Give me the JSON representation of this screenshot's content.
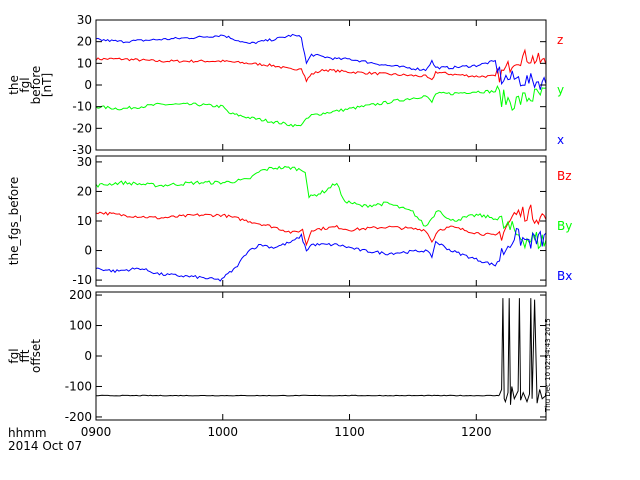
{
  "figure": {
    "footer_time_label": "hhmm",
    "footer_date_label": "2014 Oct 07",
    "side_stamp": "Thu Dec 10 02:54:43 2015"
  },
  "colors": {
    "x": "#0000ff",
    "y": "#00ff00",
    "z": "#ff0000",
    "black": "#000000"
  },
  "chart_data": [
    {
      "type": "line",
      "panel": "fgl",
      "ylabel_lines": [
        "the",
        "fgl",
        "before",
        "[nT]"
      ],
      "ylim": [
        -30,
        30
      ],
      "yticks": [
        -30,
        -20,
        -10,
        0,
        10,
        20,
        30
      ],
      "xlim": [
        900,
        1255
      ],
      "xticks": [
        900,
        1000,
        1100,
        1200
      ],
      "series": [
        {
          "name": "z",
          "color": "#ff0000",
          "noise": 0.6,
          "x": [
            900,
            920,
            950,
            980,
            1000,
            1020,
            1040,
            1055,
            1062,
            1066,
            1070,
            1080,
            1100,
            1130,
            1160,
            1165,
            1168,
            1180,
            1200,
            1215,
            1220,
            1225,
            1230,
            1240,
            1255
          ],
          "y": [
            12,
            12,
            11,
            11,
            11,
            10,
            9,
            7,
            8,
            2,
            5,
            7,
            6,
            5,
            4,
            2,
            6,
            5,
            4,
            4,
            5,
            8,
            12,
            13,
            10
          ]
        },
        {
          "name": "y",
          "color": "#00ff00",
          "noise": 0.7,
          "x": [
            900,
            920,
            950,
            980,
            1000,
            1005,
            1020,
            1040,
            1060,
            1066,
            1070,
            1090,
            1100,
            1130,
            1160,
            1165,
            1168,
            1180,
            1200,
            1215,
            1220,
            1230,
            1240,
            1255
          ],
          "y": [
            -10,
            -11,
            -9,
            -9,
            -10,
            -13,
            -15,
            -17,
            -19,
            -16,
            -14,
            -12,
            -11,
            -8,
            -5,
            -8,
            -4,
            -4,
            -3,
            -3,
            -6,
            -8,
            -6,
            -4
          ]
        },
        {
          "name": "x",
          "color": "#0000ff",
          "noise": 0.6,
          "x": [
            900,
            920,
            950,
            980,
            1000,
            1020,
            1040,
            1055,
            1062,
            1066,
            1070,
            1090,
            1100,
            1130,
            1160,
            1165,
            1168,
            1180,
            1200,
            1215,
            1220,
            1230,
            1240,
            1255
          ],
          "y": [
            21,
            20,
            21,
            22,
            23,
            19,
            21,
            23,
            22,
            10,
            14,
            12,
            12,
            9,
            7,
            11,
            8,
            8,
            9,
            11,
            3,
            3,
            2,
            1
          ]
        }
      ],
      "legend": [
        "z",
        "y",
        "x"
      ]
    },
    {
      "type": "line",
      "panel": "fgs",
      "ylabel_lines": [
        "the_fgs_before"
      ],
      "ylim": [
        -12,
        32
      ],
      "yticks": [
        -10,
        0,
        10,
        20,
        30
      ],
      "xlim": [
        900,
        1255
      ],
      "xticks": [
        900,
        1000,
        1100,
        1200
      ],
      "series": [
        {
          "name": "Bz",
          "color": "#ff0000",
          "noise": 0.5,
          "x": [
            900,
            920,
            950,
            980,
            1000,
            1020,
            1040,
            1055,
            1063,
            1066,
            1070,
            1090,
            1100,
            1130,
            1160,
            1165,
            1170,
            1180,
            1200,
            1215,
            1220,
            1230,
            1240,
            1255
          ],
          "y": [
            13,
            12,
            11,
            12,
            12,
            10,
            8,
            6,
            7,
            2,
            7,
            8,
            7,
            8,
            7,
            3,
            7,
            8,
            6,
            5,
            6,
            12,
            13,
            11
          ]
        },
        {
          "name": "By",
          "color": "#00ff00",
          "noise": 0.6,
          "x": [
            900,
            920,
            950,
            980,
            1000,
            1020,
            1030,
            1040,
            1055,
            1065,
            1068,
            1080,
            1090,
            1095,
            1110,
            1130,
            1150,
            1160,
            1170,
            1180,
            1200,
            1215,
            1220,
            1230,
            1240,
            1255
          ],
          "y": [
            22,
            23,
            22,
            23,
            23,
            24,
            27,
            28,
            28,
            27,
            18,
            20,
            23,
            17,
            15,
            16,
            13,
            8,
            14,
            10,
            12,
            11,
            9,
            6,
            4,
            3
          ]
        },
        {
          "name": "Bx",
          "color": "#0000ff",
          "noise": 0.5,
          "x": [
            900,
            915,
            935,
            950,
            980,
            998,
            1010,
            1020,
            1030,
            1040,
            1055,
            1062,
            1066,
            1070,
            1090,
            1110,
            1130,
            1160,
            1165,
            1168,
            1180,
            1200,
            1215,
            1220,
            1230,
            1240,
            1255
          ],
          "y": [
            -6,
            -7,
            -6,
            -8,
            -9,
            -10,
            -6,
            0,
            2,
            1,
            3,
            5,
            0,
            2,
            2,
            0,
            -1,
            0,
            -2,
            3,
            0,
            -3,
            -5,
            -1,
            5,
            3,
            4
          ]
        }
      ],
      "legend": [
        "Bz",
        "By",
        "Bx"
      ]
    },
    {
      "type": "line",
      "panel": "fft",
      "ylabel_lines": [
        "fgl",
        "fft",
        "offset"
      ],
      "ylim": [
        -210,
        210
      ],
      "yticks": [
        -200,
        -100,
        0,
        100,
        200
      ],
      "xlim": [
        900,
        1255
      ],
      "xticks": [
        900,
        1000,
        1100,
        1200
      ],
      "series": [
        {
          "name": "",
          "color": "#000000",
          "noise": 1,
          "x": [
            900,
            1000,
            1100,
            1200,
            1218
          ],
          "y": [
            -130,
            -130,
            -130,
            -130,
            -130
          ]
        },
        {
          "name": "",
          "color": "#000000",
          "noise": 0,
          "x": [
            1218,
            1220,
            1221,
            1222,
            1223,
            1225,
            1226,
            1227,
            1228,
            1230,
            1233,
            1234,
            1235,
            1237,
            1240,
            1242,
            1243,
            1244,
            1246,
            1248,
            1250,
            1252,
            1255
          ],
          "y": [
            -130,
            -110,
            190,
            -140,
            -150,
            -120,
            190,
            -160,
            -100,
            -140,
            -115,
            190,
            -145,
            -120,
            -150,
            -125,
            190,
            -140,
            185,
            -155,
            -110,
            -140,
            -130
          ]
        }
      ]
    }
  ]
}
